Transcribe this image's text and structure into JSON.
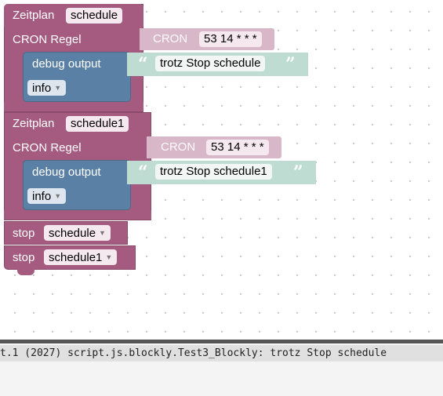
{
  "blocks": [
    {
      "header_label": "Zeitplan",
      "name": "schedule",
      "cron_label": "CRON Regel",
      "cron_chip": "CRON",
      "cron_value": "53 14 * * *",
      "debug_label": "debug output",
      "debug_text": "trotz Stop schedule",
      "level": "info"
    },
    {
      "header_label": "Zeitplan",
      "name": "schedule1",
      "cron_label": "CRON Regel",
      "cron_chip": "CRON",
      "cron_value": "53 14 * * *",
      "debug_label": "debug output",
      "debug_text": "trotz Stop schedule1",
      "level": "info"
    }
  ],
  "stop_blocks": [
    {
      "label": "stop",
      "value": "schedule"
    },
    {
      "label": "stop",
      "value": "schedule1"
    }
  ],
  "console": {
    "log_line": "t.1 (2027) script.js.blockly.Test3_Blockly: trotz Stop schedule"
  },
  "colors": {
    "schedule_block": "#a55b80",
    "cron_block": "#d8b7c8",
    "debug_block": "#5b80a5",
    "text_block": "#bfdcd2"
  },
  "icons": [
    "dropdown-arrow-icon",
    "open-quote-icon",
    "close-quote-icon"
  ]
}
